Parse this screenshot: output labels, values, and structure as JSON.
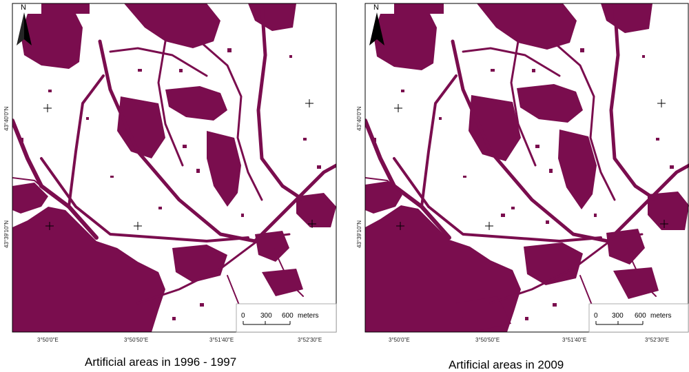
{
  "colors": {
    "artificial": "#7a0d4e",
    "background": "#ffffff",
    "frame": "#000000"
  },
  "north_arrow": {
    "letter": "N",
    "icon": "north-arrow-icon"
  },
  "scale_bar": {
    "labels": [
      "0",
      "300",
      "600"
    ],
    "unit": "meters"
  },
  "lon_ticks": [
    "3°50'0\"E",
    "3°50'50\"E",
    "3°51'40\"E",
    "3°52'30\"E"
  ],
  "lat_ticks": [
    "43°40'0\"N",
    "43°39'10\"N"
  ],
  "maps": [
    {
      "caption": "Artificial areas in 1996 - 1997"
    },
    {
      "caption": "Artificial areas in 2009"
    }
  ]
}
